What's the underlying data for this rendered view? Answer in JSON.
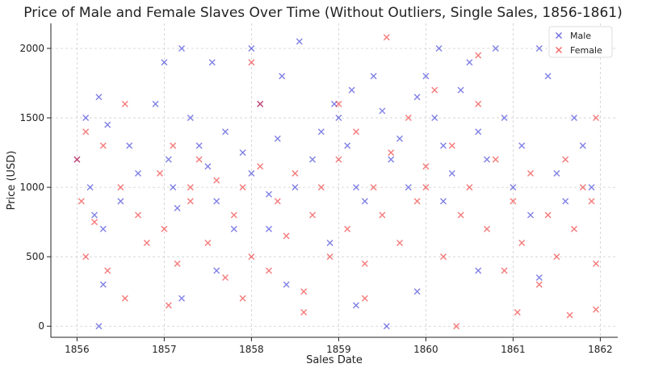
{
  "chart_data": {
    "type": "scatter",
    "title": "Price of Male and Female Slaves Over Time (Without Outliers, Single Sales, 1856-1861)",
    "xlabel": "Sales Date",
    "ylabel": "Price (USD)",
    "xlim": [
      1855.7,
      1862.2
    ],
    "ylim": [
      -80,
      2180
    ],
    "x_ticks": [
      "1856",
      "1857",
      "1858",
      "1859",
      "1860",
      "1861",
      "1862"
    ],
    "y_ticks": [
      "0",
      "500",
      "1000",
      "1500",
      "2000"
    ],
    "grid": true,
    "legend_position": "top-right",
    "marker": "x",
    "series": [
      {
        "name": "Male",
        "color": "#2b2bd6",
        "points": [
          [
            1856.0,
            1200
          ],
          [
            1856.1,
            1500
          ],
          [
            1856.15,
            1000
          ],
          [
            1856.2,
            800
          ],
          [
            1856.25,
            1650
          ],
          [
            1856.3,
            700
          ],
          [
            1856.3,
            300
          ],
          [
            1856.35,
            1450
          ],
          [
            1856.5,
            900
          ],
          [
            1856.6,
            1300
          ],
          [
            1856.7,
            1100
          ],
          [
            1856.9,
            1600
          ],
          [
            1857.0,
            1900
          ],
          [
            1857.05,
            1200
          ],
          [
            1857.1,
            1000
          ],
          [
            1857.15,
            850
          ],
          [
            1857.2,
            2000
          ],
          [
            1857.3,
            1500
          ],
          [
            1857.4,
            1300
          ],
          [
            1857.5,
            1150
          ],
          [
            1857.55,
            1900
          ],
          [
            1857.6,
            900
          ],
          [
            1857.7,
            1400
          ],
          [
            1857.8,
            700
          ],
          [
            1857.9,
            1250
          ],
          [
            1858.0,
            1100
          ],
          [
            1858.0,
            2000
          ],
          [
            1858.1,
            1600
          ],
          [
            1858.2,
            950
          ],
          [
            1858.3,
            1350
          ],
          [
            1858.35,
            1800
          ],
          [
            1858.5,
            1000
          ],
          [
            1858.55,
            2050
          ],
          [
            1858.7,
            1200
          ],
          [
            1858.8,
            1400
          ],
          [
            1858.9,
            600
          ],
          [
            1858.95,
            1600
          ],
          [
            1859.0,
            1500
          ],
          [
            1859.1,
            1300
          ],
          [
            1859.15,
            1700
          ],
          [
            1859.2,
            1000
          ],
          [
            1859.3,
            900
          ],
          [
            1859.4,
            1800
          ],
          [
            1859.5,
            1550
          ],
          [
            1859.6,
            1200
          ],
          [
            1859.7,
            1350
          ],
          [
            1859.8,
            1000
          ],
          [
            1859.9,
            1650
          ],
          [
            1860.0,
            1800
          ],
          [
            1860.1,
            1500
          ],
          [
            1860.15,
            2000
          ],
          [
            1860.2,
            1300
          ],
          [
            1860.3,
            1100
          ],
          [
            1860.4,
            1700
          ],
          [
            1860.5,
            1900
          ],
          [
            1860.6,
            1400
          ],
          [
            1860.7,
            1200
          ],
          [
            1860.8,
            2000
          ],
          [
            1860.9,
            1500
          ],
          [
            1861.0,
            1000
          ],
          [
            1861.1,
            1300
          ],
          [
            1861.2,
            800
          ],
          [
            1861.3,
            2000
          ],
          [
            1861.4,
            1800
          ],
          [
            1861.5,
            1100
          ],
          [
            1861.6,
            900
          ],
          [
            1861.7,
            1500
          ],
          [
            1861.8,
            1300
          ],
          [
            1861.9,
            1000
          ],
          [
            1857.2,
            200
          ],
          [
            1857.6,
            400
          ],
          [
            1858.4,
            300
          ],
          [
            1859.2,
            150
          ],
          [
            1859.9,
            250
          ],
          [
            1860.6,
            400
          ],
          [
            1861.3,
            350
          ],
          [
            1856.25,
            0
          ],
          [
            1859.55,
            0
          ],
          [
            1858.2,
            700
          ],
          [
            1860.2,
            900
          ]
        ]
      },
      {
        "name": "Female",
        "color": "#ee2222",
        "points": [
          [
            1856.0,
            1200
          ],
          [
            1856.05,
            900
          ],
          [
            1856.1,
            500
          ],
          [
            1856.2,
            750
          ],
          [
            1856.3,
            1300
          ],
          [
            1856.35,
            400
          ],
          [
            1856.5,
            1000
          ],
          [
            1856.55,
            200
          ],
          [
            1856.7,
            800
          ],
          [
            1856.8,
            600
          ],
          [
            1856.95,
            1100
          ],
          [
            1857.0,
            700
          ],
          [
            1857.1,
            1300
          ],
          [
            1857.15,
            450
          ],
          [
            1857.3,
            900
          ],
          [
            1857.4,
            1200
          ],
          [
            1857.5,
            600
          ],
          [
            1857.6,
            1050
          ],
          [
            1857.7,
            350
          ],
          [
            1857.8,
            800
          ],
          [
            1857.9,
            1000
          ],
          [
            1858.0,
            500
          ],
          [
            1858.0,
            1900
          ],
          [
            1858.1,
            1150
          ],
          [
            1858.2,
            400
          ],
          [
            1858.3,
            900
          ],
          [
            1858.4,
            650
          ],
          [
            1858.5,
            1100
          ],
          [
            1858.6,
            250
          ],
          [
            1858.7,
            800
          ],
          [
            1858.8,
            1000
          ],
          [
            1858.9,
            500
          ],
          [
            1859.0,
            1200
          ],
          [
            1859.1,
            700
          ],
          [
            1859.2,
            1400
          ],
          [
            1859.3,
            450
          ],
          [
            1859.4,
            1000
          ],
          [
            1859.5,
            800
          ],
          [
            1859.55,
            2080
          ],
          [
            1859.6,
            1250
          ],
          [
            1859.7,
            600
          ],
          [
            1859.8,
            1500
          ],
          [
            1859.9,
            900
          ],
          [
            1860.0,
            1150
          ],
          [
            1860.1,
            1700
          ],
          [
            1860.2,
            500
          ],
          [
            1860.3,
            1300
          ],
          [
            1860.4,
            800
          ],
          [
            1860.5,
            1000
          ],
          [
            1860.6,
            1600
          ],
          [
            1860.7,
            700
          ],
          [
            1860.8,
            1200
          ],
          [
            1860.9,
            400
          ],
          [
            1861.0,
            900
          ],
          [
            1861.1,
            600
          ],
          [
            1861.2,
            1100
          ],
          [
            1861.3,
            300
          ],
          [
            1861.4,
            800
          ],
          [
            1861.5,
            500
          ],
          [
            1861.6,
            1200
          ],
          [
            1861.7,
            700
          ],
          [
            1861.8,
            1000
          ],
          [
            1861.9,
            900
          ],
          [
            1861.95,
            1500
          ],
          [
            1861.95,
            450
          ],
          [
            1857.05,
            150
          ],
          [
            1857.9,
            200
          ],
          [
            1858.6,
            100
          ],
          [
            1859.3,
            200
          ],
          [
            1860.35,
            0
          ],
          [
            1861.05,
            100
          ],
          [
            1861.65,
            80
          ],
          [
            1861.95,
            120
          ],
          [
            1856.1,
            1400
          ],
          [
            1856.55,
            1600
          ],
          [
            1858.1,
            1600
          ],
          [
            1859.0,
            1600
          ],
          [
            1860.6,
            1950
          ],
          [
            1857.3,
            1000
          ],
          [
            1860.0,
            1000
          ]
        ]
      }
    ]
  }
}
